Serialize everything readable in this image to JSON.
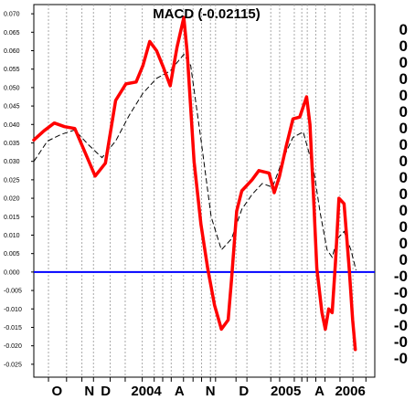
{
  "chart_data": {
    "type": "line",
    "title": "MACD (-0.02115)",
    "xlabel": "",
    "ylabel": "",
    "ylim": [
      -0.0285,
      0.0725
    ],
    "x_range": [
      0,
      100
    ],
    "y_ticks": [
      0.07,
      0.065,
      0.06,
      0.055,
      0.05,
      0.045,
      0.04,
      0.035,
      0.03,
      0.025,
      0.02,
      0.015,
      0.01,
      0.005,
      0.0,
      -0.005,
      -0.01,
      -0.015,
      -0.02,
      -0.025
    ],
    "y_tick_labels": [
      "0.070",
      "0.065",
      "0.060",
      "0.055",
      "0.050",
      "0.045",
      "0.040",
      "0.035",
      "0.030",
      "0.025",
      "0.020",
      "0.015",
      "0.010",
      "0.005",
      "0.000",
      "-0.005",
      "-0.010",
      "-0.015",
      "-0.020",
      "-0.025"
    ],
    "right_axis_labels": [
      "0",
      "0",
      "0",
      "0",
      "0",
      "0",
      "0",
      "0",
      "0",
      "0",
      "0",
      "0",
      "0",
      "0",
      "0",
      "-0",
      "-0",
      "-0",
      "-0",
      "-0",
      "-0"
    ],
    "month_labels": [
      {
        "label": "O",
        "x": 6.8
      },
      {
        "label": "N",
        "x": 16.3
      },
      {
        "label": "D",
        "x": 21.1
      },
      {
        "label": "2004",
        "x": 33.0
      },
      {
        "label": "A",
        "x": 42.7
      },
      {
        "label": "N",
        "x": 51.8
      },
      {
        "label": "D",
        "x": 61.6
      },
      {
        "label": "2005",
        "x": 73.9
      },
      {
        "label": "A",
        "x": 83.8
      },
      {
        "label": "2006",
        "x": 92.8
      }
    ],
    "grid_x": [
      4.3,
      9.6,
      14.1,
      17.5,
      22.4,
      26.8,
      31.8,
      35.3,
      37.8,
      40.3,
      43.9,
      46.7,
      49.2,
      51.8,
      53.3,
      59.3,
      62.5,
      69.5,
      72.1,
      76.4,
      78.6,
      80.2,
      82.7,
      85.4,
      89.8,
      93.6,
      97.4
    ],
    "zero_line": 0.0,
    "series": [
      {
        "name": "",
        "style": "macd",
        "color": "#ff0000",
        "points": [
          [
            0.0,
            0.0358
          ],
          [
            3.0,
            0.0383
          ],
          [
            6.0,
            0.0404
          ],
          [
            9.0,
            0.0394
          ],
          [
            12.0,
            0.0389
          ],
          [
            15.0,
            0.0325
          ],
          [
            18.0,
            0.026
          ],
          [
            21.0,
            0.0295
          ],
          [
            24.0,
            0.0465
          ],
          [
            27.0,
            0.051
          ],
          [
            30.0,
            0.0515
          ],
          [
            32.0,
            0.056
          ],
          [
            34.0,
            0.0625
          ],
          [
            36.0,
            0.06
          ],
          [
            38.0,
            0.0555
          ],
          [
            40.0,
            0.0505
          ],
          [
            42.0,
            0.061
          ],
          [
            44.0,
            0.069
          ],
          [
            45.0,
            0.0595
          ],
          [
            47.0,
            0.03
          ],
          [
            49.0,
            0.013
          ],
          [
            51.0,
            0.001
          ],
          [
            53.0,
            -0.009
          ],
          [
            55.0,
            -0.0155
          ],
          [
            57.0,
            -0.013
          ],
          [
            58.0,
            -0.002
          ],
          [
            59.5,
            0.0165
          ],
          [
            61.0,
            0.022
          ],
          [
            64.0,
            0.025
          ],
          [
            66.0,
            0.0275
          ],
          [
            69.0,
            0.0268
          ],
          [
            70.5,
            0.0215
          ],
          [
            72.0,
            0.0258
          ],
          [
            74.0,
            0.034
          ],
          [
            76.0,
            0.0415
          ],
          [
            78.0,
            0.042
          ],
          [
            80.0,
            0.0475
          ],
          [
            81.0,
            0.04
          ],
          [
            82.0,
            0.021
          ],
          [
            83.0,
            0.001
          ],
          [
            84.5,
            -0.011
          ],
          [
            85.5,
            -0.0155
          ],
          [
            86.5,
            -0.01
          ],
          [
            87.5,
            -0.011
          ],
          [
            88.5,
            0.003
          ],
          [
            89.5,
            0.02
          ],
          [
            91.0,
            0.0185
          ],
          [
            92.5,
            0.001
          ],
          [
            93.5,
            -0.013
          ],
          [
            94.3,
            -0.021
          ]
        ]
      },
      {
        "name": "",
        "style": "signal",
        "color": "#000000",
        "points": [
          [
            0.0,
            0.03
          ],
          [
            4.0,
            0.0355
          ],
          [
            8.0,
            0.0373
          ],
          [
            12.0,
            0.0385
          ],
          [
            16.0,
            0.0345
          ],
          [
            20.0,
            0.031
          ],
          [
            24.0,
            0.0355
          ],
          [
            28.0,
            0.0425
          ],
          [
            32.0,
            0.0485
          ],
          [
            36.0,
            0.0525
          ],
          [
            40.0,
            0.0545
          ],
          [
            44.0,
            0.059
          ],
          [
            46.0,
            0.056
          ],
          [
            49.0,
            0.036
          ],
          [
            52.0,
            0.015
          ],
          [
            55.0,
            0.006
          ],
          [
            58.0,
            0.009
          ],
          [
            61.0,
            0.017
          ],
          [
            64.0,
            0.021
          ],
          [
            67.0,
            0.024
          ],
          [
            70.0,
            0.023
          ],
          [
            73.0,
            0.0305
          ],
          [
            76.0,
            0.0365
          ],
          [
            79.0,
            0.038
          ],
          [
            82.0,
            0.028
          ],
          [
            84.0,
            0.016
          ],
          [
            86.0,
            0.006
          ],
          [
            87.5,
            0.004
          ],
          [
            89.0,
            0.009
          ],
          [
            91.0,
            0.011
          ],
          [
            93.0,
            0.006
          ],
          [
            94.5,
            0.0005
          ]
        ]
      }
    ]
  }
}
